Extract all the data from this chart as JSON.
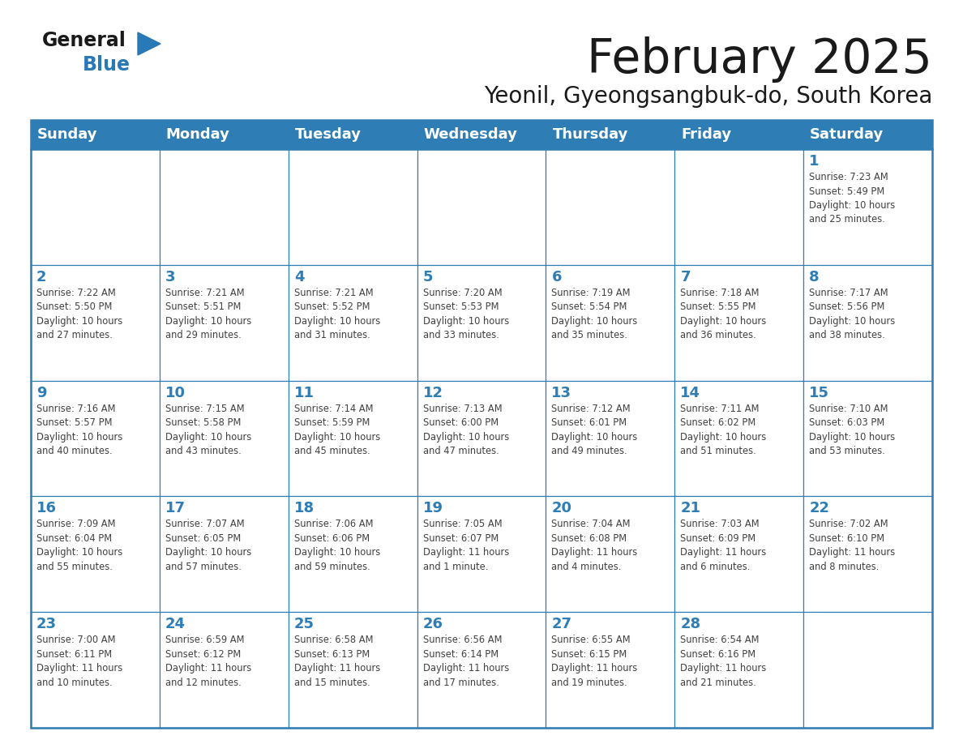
{
  "title": "February 2025",
  "subtitle": "Yeonil, Gyeongsangbuk-do, South Korea",
  "days_of_week": [
    "Sunday",
    "Monday",
    "Tuesday",
    "Wednesday",
    "Thursday",
    "Friday",
    "Saturday"
  ],
  "header_bg": "#2E7DB5",
  "header_text": "#FFFFFF",
  "border_color": "#2E7DB5",
  "day_number_color": "#2E7DB5",
  "text_color": "#404040",
  "title_color": "#1a1a1a",
  "logo_general_color": "#1a1a1a",
  "logo_blue_color": "#2879B5",
  "calendar_data": [
    [
      null,
      null,
      null,
      null,
      null,
      null,
      {
        "day": "1",
        "sunrise": "7:23 AM",
        "sunset": "5:49 PM",
        "daylight": "10 hours\nand 25 minutes."
      }
    ],
    [
      {
        "day": "2",
        "sunrise": "7:22 AM",
        "sunset": "5:50 PM",
        "daylight": "10 hours\nand 27 minutes."
      },
      {
        "day": "3",
        "sunrise": "7:21 AM",
        "sunset": "5:51 PM",
        "daylight": "10 hours\nand 29 minutes."
      },
      {
        "day": "4",
        "sunrise": "7:21 AM",
        "sunset": "5:52 PM",
        "daylight": "10 hours\nand 31 minutes."
      },
      {
        "day": "5",
        "sunrise": "7:20 AM",
        "sunset": "5:53 PM",
        "daylight": "10 hours\nand 33 minutes."
      },
      {
        "day": "6",
        "sunrise": "7:19 AM",
        "sunset": "5:54 PM",
        "daylight": "10 hours\nand 35 minutes."
      },
      {
        "day": "7",
        "sunrise": "7:18 AM",
        "sunset": "5:55 PM",
        "daylight": "10 hours\nand 36 minutes."
      },
      {
        "day": "8",
        "sunrise": "7:17 AM",
        "sunset": "5:56 PM",
        "daylight": "10 hours\nand 38 minutes."
      }
    ],
    [
      {
        "day": "9",
        "sunrise": "7:16 AM",
        "sunset": "5:57 PM",
        "daylight": "10 hours\nand 40 minutes."
      },
      {
        "day": "10",
        "sunrise": "7:15 AM",
        "sunset": "5:58 PM",
        "daylight": "10 hours\nand 43 minutes."
      },
      {
        "day": "11",
        "sunrise": "7:14 AM",
        "sunset": "5:59 PM",
        "daylight": "10 hours\nand 45 minutes."
      },
      {
        "day": "12",
        "sunrise": "7:13 AM",
        "sunset": "6:00 PM",
        "daylight": "10 hours\nand 47 minutes."
      },
      {
        "day": "13",
        "sunrise": "7:12 AM",
        "sunset": "6:01 PM",
        "daylight": "10 hours\nand 49 minutes."
      },
      {
        "day": "14",
        "sunrise": "7:11 AM",
        "sunset": "6:02 PM",
        "daylight": "10 hours\nand 51 minutes."
      },
      {
        "day": "15",
        "sunrise": "7:10 AM",
        "sunset": "6:03 PM",
        "daylight": "10 hours\nand 53 minutes."
      }
    ],
    [
      {
        "day": "16",
        "sunrise": "7:09 AM",
        "sunset": "6:04 PM",
        "daylight": "10 hours\nand 55 minutes."
      },
      {
        "day": "17",
        "sunrise": "7:07 AM",
        "sunset": "6:05 PM",
        "daylight": "10 hours\nand 57 minutes."
      },
      {
        "day": "18",
        "sunrise": "7:06 AM",
        "sunset": "6:06 PM",
        "daylight": "10 hours\nand 59 minutes."
      },
      {
        "day": "19",
        "sunrise": "7:05 AM",
        "sunset": "6:07 PM",
        "daylight": "11 hours\nand 1 minute."
      },
      {
        "day": "20",
        "sunrise": "7:04 AM",
        "sunset": "6:08 PM",
        "daylight": "11 hours\nand 4 minutes."
      },
      {
        "day": "21",
        "sunrise": "7:03 AM",
        "sunset": "6:09 PM",
        "daylight": "11 hours\nand 6 minutes."
      },
      {
        "day": "22",
        "sunrise": "7:02 AM",
        "sunset": "6:10 PM",
        "daylight": "11 hours\nand 8 minutes."
      }
    ],
    [
      {
        "day": "23",
        "sunrise": "7:00 AM",
        "sunset": "6:11 PM",
        "daylight": "11 hours\nand 10 minutes."
      },
      {
        "day": "24",
        "sunrise": "6:59 AM",
        "sunset": "6:12 PM",
        "daylight": "11 hours\nand 12 minutes."
      },
      {
        "day": "25",
        "sunrise": "6:58 AM",
        "sunset": "6:13 PM",
        "daylight": "11 hours\nand 15 minutes."
      },
      {
        "day": "26",
        "sunrise": "6:56 AM",
        "sunset": "6:14 PM",
        "daylight": "11 hours\nand 17 minutes."
      },
      {
        "day": "27",
        "sunrise": "6:55 AM",
        "sunset": "6:15 PM",
        "daylight": "11 hours\nand 19 minutes."
      },
      {
        "day": "28",
        "sunrise": "6:54 AM",
        "sunset": "6:16 PM",
        "daylight": "11 hours\nand 21 minutes."
      },
      null
    ]
  ],
  "fig_width": 11.88,
  "fig_height": 9.18,
  "dpi": 100
}
